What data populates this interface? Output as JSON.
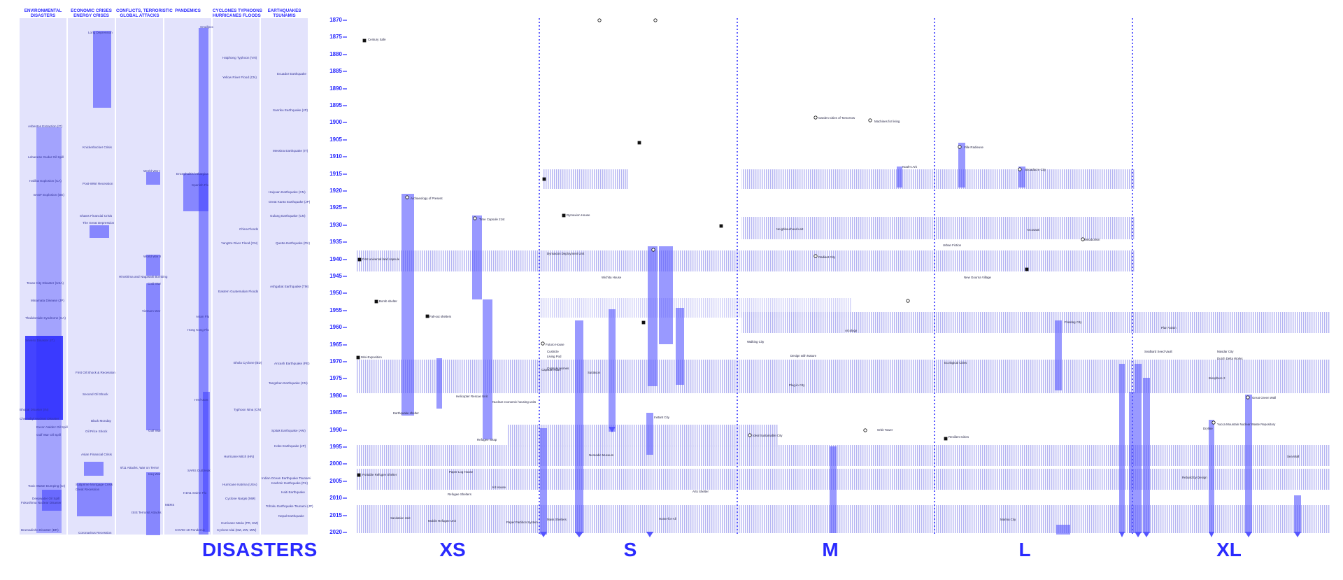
{
  "disaster_columns": [
    {
      "id": "env",
      "label": "ENVIRONMENTAL\nDISASTERS"
    },
    {
      "id": "eco",
      "label": "ECONOMIC CRISES\nENERGY CRISES"
    },
    {
      "id": "conf",
      "label": "CONFLICTS, TERRORISTIC\nGLOBAL ATTACKS"
    },
    {
      "id": "pand",
      "label": "PANDEMICS"
    },
    {
      "id": "cyc",
      "label": "CYCLONES TYPHOONS\nHURRICANES FLOODS"
    },
    {
      "id": "eq",
      "label": "EARTHQUAKES\nTSUNAMIS"
    }
  ],
  "disaster_events": {
    "env": [
      "Asbestos Extraction (IT)",
      "Lebanese Gudar Oil Spill",
      "Halifax Explosion (CA)",
      "BASF Explosion (DE)",
      "Texas City Disaster (USA)",
      "Minamata Disease (JP)",
      "Thalidomide Syndrome (CA)",
      "Seveso Disaster (IT)",
      "Bhopal Disaster (IN)",
      "Chernobyl Nuclear Disaster",
      "Exxon Valdez Oil Spill",
      "Gulf War Oil Spill",
      "Toxic Waste Dumping (CI)",
      "Deepwater Oil Spill",
      "Fukushima Nuclear Disaster",
      "Brumadinho Disaster (BR)"
    ],
    "eco": [
      "Long Depression",
      "Knickerbocker Crisis",
      "Post-WWI Recession",
      "Shaws Financial Crisis",
      "The Great Depression",
      "First Oil Shock & Recession",
      "Second Oil Shock",
      "Black Monday",
      "Oil Price Shock",
      "Asian Financial Crisis",
      "Subprime Mortgage Crisis",
      "Great Recession",
      "Coronavirus Recession"
    ],
    "conf": [
      "World War I",
      "World War II",
      "Hiroshima and Nagasaki Bombing",
      "Cold War",
      "Vietnam War",
      "Gulf War",
      "9/11 Attacks, War on Terror",
      "Iraq War",
      "ISIS Terrorist Attacks"
    ],
    "pand": [
      "Smallpox",
      "Encephalitis lethargica",
      "Spanish Flu",
      "Asian Flu",
      "Hong Kong Flu",
      "HIV/AIDS",
      "SARS Outbreak",
      "H1N1 Swine Flu",
      "MERS",
      "COVID-19 Pandemic"
    ],
    "cyc": [
      "Haiphong Typhoon (VN)",
      "Yellow River Flood (CN)",
      "China Floods",
      "Yangtze River Flood (CN)",
      "Eastern Guatemalan Floods",
      "Bhola Cyclone (BD)",
      "Typhoon Nina (CN)",
      "Hurricane Mitch (HN)",
      "Hurricane Katrina (USA)",
      "Cyclone Nargis (MM)",
      "Hurricane Maria (PR, DM)",
      "Cyclone Idai (MZ, ZW, MW)"
    ],
    "eq": [
      "Ecuador Earthquake",
      "Sanriku Earthquake (JP)",
      "Messina Earthquake (IT)",
      "Haiyuan Earthquake (CN)",
      "Great Kanto Earthquake (JP)",
      "Gulang Earthquake (CN)",
      "Quetta Earthquake (PK)",
      "Ashgabat Earthquake (TM)",
      "Ancash Earthquake (PE)",
      "Tangshan Earthquake (CN)",
      "Spitak Earthquake (AM)",
      "Kobe Earthquake (JP)",
      "Indian Ocean Earthquake Tsunami",
      "Kashmir Earthquake (PK)",
      "Haiti Earthquake",
      "Tohoku Earthquake Tsunami (JP)",
      "Nepal Earthquake"
    ]
  },
  "years": [
    "1870",
    "1875",
    "1880",
    "1885",
    "1890",
    "1895",
    "1900",
    "1905",
    "1910",
    "1915",
    "1920",
    "1925",
    "1930",
    "1935",
    "1940",
    "1945",
    "1950",
    "1955",
    "1960",
    "1965",
    "1970",
    "1975",
    "1980",
    "1985",
    "1990",
    "1995",
    "2000",
    "2005",
    "2010",
    "2015",
    "2020"
  ],
  "scale_labels": [
    "XS",
    "S",
    "M",
    "L",
    "XL"
  ],
  "section_title": "DISASTERS",
  "projects_xs": [
    "Century Safe",
    "First universal land capsule",
    "Bomb shelter",
    "Fall-out shelters",
    "Mini-Exposition",
    "Helicopter Rescue Unit",
    "Nuclear economic housing units",
    "Refugee Wrap",
    "Capsule Hotel",
    "Portable Refugee Shelter",
    "Paper Log House",
    "Mobile Refugee Unit",
    "Paper Partition System",
    "Sanitation Unit",
    "Refugee Shelters",
    "Kit House",
    "Earthquake shelter"
  ],
  "projects_s": [
    "Archaeology of Present",
    "Time Capsule 21st",
    "Dymaxion Deployment Unit",
    "Dymaxion House",
    "Wichita House",
    "Futuro House",
    "Living Pod",
    "Capsule Homes",
    "Cushicle",
    "Suitaloon",
    "Instant City",
    "Nomadic Museum",
    "Arts Shelter",
    "Home-for-All",
    "Mass Shelters"
  ],
  "projects_m": [
    "Garden Cities of Tomorrow",
    "Machines for living",
    "Neighbourhood unit",
    "Arcology",
    "Radiant City",
    "Design with Nature",
    "Walking City",
    "Plug-in City",
    "Ideal Sustainable City",
    "Orbit Tower",
    "Noah's Ark"
  ],
  "projects_l": [
    "Ville Radieuse",
    "Broadacre City",
    "Urban Fiction",
    "New Gourna Village",
    "Arcosanti",
    "Ecological Cities",
    "Metabolism",
    "Floating City",
    "Resilient Cities",
    "Marina City"
  ],
  "projects_xl": [
    "Plan Voisin",
    "Biosphere 2",
    "Masdar City",
    "Dutch Delta Works",
    "Svalbard Seed Vault",
    "Rebuild by Design",
    "Dryline",
    "Sea Wall",
    "Great Green Wall",
    "Yucca Mountain Nuclear Waste Repository"
  ],
  "colors": {
    "accent": "#2a2aff",
    "bar": "#5050ff",
    "bg": "#e3e3fc",
    "stripe": "#c8c8f6"
  }
}
